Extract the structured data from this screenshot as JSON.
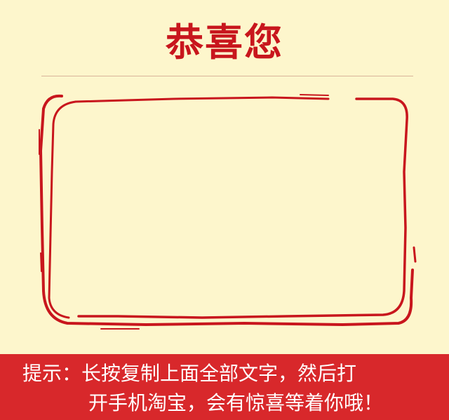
{
  "header": {
    "title": "恭喜您"
  },
  "footer": {
    "hint_line_1": "提示：长按复制上面全部文字，然后打",
    "hint_line_2": "开手机淘宝，会有惊喜等着你哦！"
  },
  "colors": {
    "background": "#fdf6cc",
    "accent_red": "#c8161d",
    "footer_red": "#d8282b",
    "divider": "#d9b49a"
  }
}
